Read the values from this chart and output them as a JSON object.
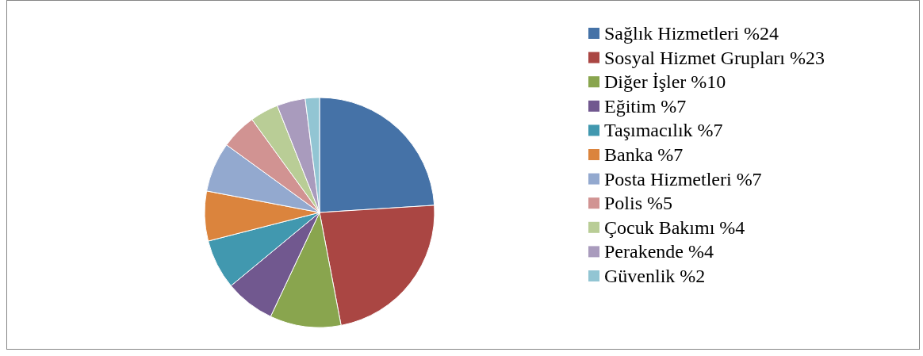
{
  "chart_data": {
    "type": "pie",
    "categories": [
      "Sağlık Hizmetleri %24",
      "Sosyal Hizmet Grupları %23",
      "Diğer İşler %10",
      "Eğitim %7",
      "Taşımacılık %7",
      "Banka %7",
      "Posta Hizmetleri %7",
      "Polis %5",
      "Çocuk Bakımı %4",
      "Perakende %4",
      "Güvenlik %2"
    ],
    "values": [
      24,
      23,
      10,
      7,
      7,
      7,
      7,
      5,
      4,
      4,
      2
    ],
    "colors": [
      "#4572a7",
      "#aa4643",
      "#89a54e",
      "#71588f",
      "#4198af",
      "#db843d",
      "#93a9cf",
      "#d19392",
      "#b9cd96",
      "#a99bbd",
      "#92c5d3"
    ],
    "legend": "right"
  }
}
